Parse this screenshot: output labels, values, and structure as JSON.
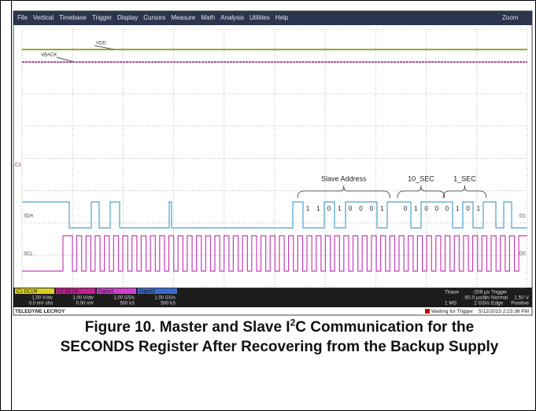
{
  "menu": [
    "File",
    "Vertical",
    "Timebase",
    "Trigger",
    "Display",
    "Cursors",
    "Measure",
    "Math",
    "Analysis",
    "Utilities",
    "Help"
  ],
  "zoom": "Zoom",
  "traces": {
    "vdd": "VDD",
    "vback": "VBACK",
    "c3": "C3",
    "sda": "SDA",
    "scl": "SCL",
    "d1": "D1",
    "d0": "D0"
  },
  "annotations": [
    {
      "label": "Slave Address",
      "bits": [
        "1",
        "1",
        "0",
        "1",
        "0",
        "0",
        "0",
        "1"
      ]
    },
    {
      "label": "10_SEC",
      "bits": [
        "0",
        "1",
        "0",
        "0"
      ]
    },
    {
      "label": "1_SEC",
      "bits": [
        "0",
        "1",
        "0",
        "1"
      ]
    }
  ],
  "status": {
    "channels": [
      {
        "header": "C1 DC1M",
        "lines": [
          "1.00 V/div",
          "0.0 mV ofst"
        ]
      },
      {
        "header": "C2 DC1M",
        "lines": [
          "1.00 V/div",
          "0.00 mV"
        ]
      },
      {
        "header": "Digital1",
        "lines": [
          "1.00 GS/s",
          "500 kS"
        ]
      },
      {
        "header": "Digital2",
        "lines": [
          "1.00 GS/s",
          "500 kS"
        ]
      }
    ],
    "timebase": [
      "Tbase",
      "-209 µs",
      "50.0 µs/div",
      "1 MS",
      "2 GS/s"
    ],
    "trigger": [
      "Trigger",
      "Normal",
      "1.50 V",
      "Edge",
      "Positive"
    ],
    "state": "Waiting for Trigger",
    "datetime": "5/12/2015 2:23:36 PM",
    "brand": "TELEDYNE LECROY"
  },
  "caption": {
    "before": "Figure 10. Master and Slave I",
    "sup": "2",
    "after": "C Communication for the SECONDS Register After Recovering from the Backup Supply"
  }
}
